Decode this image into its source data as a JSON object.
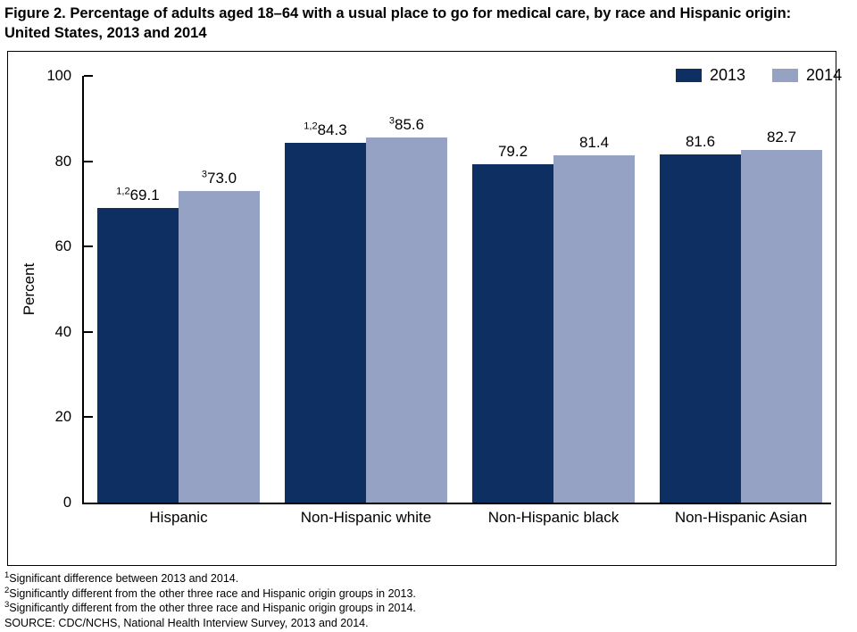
{
  "title": {
    "line1": "Figure 2. Percentage of adults aged 18–64 with a usual place to go for medical care, by race and Hispanic origin:",
    "line2": "United States, 2013 and 2014"
  },
  "legend": {
    "items": [
      {
        "label": "2013",
        "color": "#0D2F62"
      },
      {
        "label": "2014",
        "color": "#96A2C4"
      }
    ]
  },
  "chart_data": {
    "type": "bar",
    "title": "Figure 2. Percentage of adults aged 18–64 with a usual place to go for medical care, by race and Hispanic origin: United States, 2013 and 2014",
    "ylabel": "Percent",
    "xlabel": "",
    "ylim": [
      0,
      100
    ],
    "yticks": [
      0,
      20,
      40,
      60,
      80,
      100
    ],
    "grid": false,
    "legend_position": "top-right",
    "categories": [
      "Hispanic",
      "Non-Hispanic white",
      "Non-Hispanic black",
      "Non-Hispanic Asian"
    ],
    "series": [
      {
        "name": "2013",
        "color": "#0D2F62",
        "values": [
          69.1,
          84.3,
          79.2,
          81.6
        ],
        "labels": [
          {
            "sup": "1,2",
            "value": "69.1"
          },
          {
            "sup": "1,2",
            "value": "84.3"
          },
          {
            "sup": "",
            "value": "79.2"
          },
          {
            "sup": "",
            "value": "81.6"
          }
        ]
      },
      {
        "name": "2014",
        "color": "#96A2C4",
        "values": [
          73.0,
          85.6,
          81.4,
          82.7
        ],
        "labels": [
          {
            "sup": "3",
            "value": "73.0"
          },
          {
            "sup": "3",
            "value": "85.6"
          },
          {
            "sup": "",
            "value": "81.4"
          },
          {
            "sup": "",
            "value": "82.7"
          }
        ]
      }
    ]
  },
  "footnotes": [
    {
      "sup": "1",
      "text": "Significant difference between 2013 and 2014."
    },
    {
      "sup": "2",
      "text": "Significantly different from the other three race and Hispanic origin groups in 2013."
    },
    {
      "sup": "3",
      "text": "Significantly different from the other three race and Hispanic origin groups in 2014."
    },
    {
      "sup": "",
      "text": "SOURCE: CDC/NCHS, National Health Interview Survey, 2013 and 2014."
    }
  ]
}
